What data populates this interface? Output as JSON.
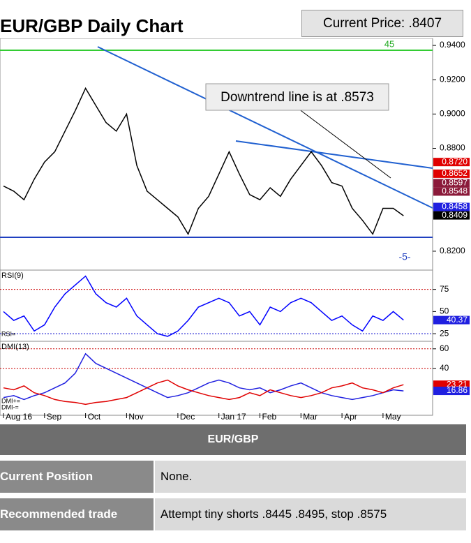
{
  "header": {
    "title": "EUR/GBP Daily Chart",
    "current_price": "Current Price: .8407"
  },
  "chart_data": [
    {
      "type": "line",
      "annotation": "Downtrend line is at .8573",
      "labels": [
        "45",
        "-5-"
      ],
      "categories": [
        "Aug 16",
        null,
        null,
        null,
        "Sep",
        null,
        null,
        null,
        "Oct",
        null,
        null,
        null,
        "Nov",
        null,
        null,
        null,
        null,
        "Dec",
        null,
        null,
        null,
        "Jan 17",
        null,
        null,
        null,
        "Feb",
        null,
        null,
        null,
        "Mar",
        null,
        null,
        null,
        "Apr",
        null,
        null,
        null,
        "May",
        null,
        null
      ],
      "series": [
        {
          "color": "#000000",
          "values": [
            0.858,
            0.855,
            0.85,
            0.862,
            0.872,
            0.878,
            0.89,
            0.902,
            0.915,
            0.905,
            0.895,
            0.89,
            0.9,
            0.87,
            0.855,
            0.85,
            0.845,
            0.84,
            0.83,
            0.845,
            0.852,
            0.865,
            0.878,
            0.865,
            0.853,
            0.85,
            0.857,
            0.852,
            0.862,
            0.87,
            0.878,
            0.87,
            0.86,
            0.858,
            0.845,
            0.838,
            0.83,
            0.845,
            0.845,
            0.8407
          ]
        }
      ],
      "ylim": [
        0.8098,
        0.9441
      ],
      "yticks": [
        {
          "value": 0.94,
          "label": "0.9400"
        },
        {
          "value": 0.92,
          "label": "0.9200"
        },
        {
          "value": 0.9,
          "label": "0.9000"
        },
        {
          "value": 0.88,
          "label": "0.8800"
        },
        {
          "value": 0.82,
          "label": "0.8200"
        }
      ],
      "markers": {
        "values": [
          0.872,
          0.8652,
          0.8597,
          0.8548,
          0.8458,
          0.8409
        ],
        "value_labels": [
          "0.8720",
          "0.8652",
          "0.8597",
          "0.8548",
          "0.8458",
          "0.8409"
        ],
        "colors": [
          "#e00000",
          "#e00000",
          "#8b1a3a",
          "#8b1a3a",
          "#2020e0",
          "#000000"
        ]
      }
    },
    {
      "type": "line",
      "title": "RSI(9)",
      "ylim": [
        18,
        96
      ],
      "yticks": [
        25,
        50,
        75
      ],
      "series": [
        {
          "name": "RSI=",
          "color": "#0000ff",
          "values": [
            50,
            40,
            45,
            28,
            35,
            55,
            70,
            80,
            90,
            70,
            60,
            55,
            65,
            45,
            35,
            25,
            22,
            28,
            40,
            55,
            60,
            65,
            60,
            45,
            50,
            35,
            55,
            50,
            60,
            65,
            60,
            50,
            40,
            45,
            35,
            28,
            45,
            40,
            50,
            40.37
          ]
        }
      ],
      "markers": {
        "values": [
          40.37
        ],
        "value_labels": [
          "40.37"
        ],
        "colors": [
          "#2020e0"
        ]
      }
    },
    {
      "type": "line",
      "title": "DMI(13)",
      "ylim": [
        -6,
        67
      ],
      "yticks": [
        40,
        60
      ],
      "series": [
        {
          "name": "DMI+=",
          "color": "#2020e0",
          "values": [
            10,
            12,
            8,
            12,
            15,
            20,
            25,
            35,
            55,
            45,
            40,
            35,
            30,
            25,
            20,
            15,
            10,
            12,
            15,
            20,
            25,
            28,
            25,
            20,
            18,
            20,
            15,
            18,
            22,
            25,
            20,
            15,
            12,
            10,
            8,
            10,
            12,
            15,
            18,
            16.86
          ]
        },
        {
          "name": "DMI-=",
          "color": "#e00000",
          "values": [
            20,
            18,
            22,
            15,
            12,
            8,
            6,
            5,
            3,
            5,
            6,
            8,
            10,
            15,
            20,
            25,
            28,
            22,
            18,
            15,
            12,
            10,
            8,
            10,
            15,
            12,
            18,
            15,
            12,
            10,
            12,
            15,
            20,
            22,
            25,
            20,
            18,
            15,
            20,
            23.21
          ]
        }
      ],
      "markers": {
        "values": [
          23.21,
          16.86
        ],
        "value_labels": [
          "23.21",
          "16.86"
        ],
        "colors": [
          "#e00000",
          "#2020e0"
        ]
      }
    }
  ],
  "table": {
    "title": "EUR/GBP",
    "rows": [
      [
        "Current Position",
        "None."
      ],
      [
        "Recommended trade",
        "Attempt tiny shorts .8445 .8495, stop .8575"
      ]
    ]
  }
}
